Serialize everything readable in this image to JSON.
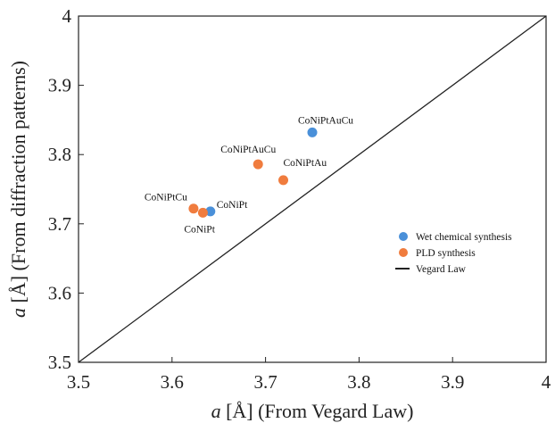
{
  "chart_data": {
    "type": "scatter",
    "title": "",
    "xlabel_symbol": "a",
    "xlabel_rest": " [Å] (From Vegard Law)",
    "ylabel_symbol": "a",
    "ylabel_rest": " [Å] (From diffraction patterns)",
    "xlim": [
      3.5,
      4.0
    ],
    "ylim": [
      3.5,
      4.0
    ],
    "xticks": [
      "3.5",
      "3.6",
      "3.7",
      "3.8",
      "3.9",
      "4"
    ],
    "yticks": [
      "3.5",
      "3.6",
      "3.7",
      "3.8",
      "3.9",
      "4"
    ],
    "grid": false,
    "legend_position": "lower-right",
    "series": [
      {
        "name": "Wet chemical synthesis",
        "color": "#4a90d9",
        "points": [
          {
            "x": 3.75,
            "y": 3.832,
            "label": "CoNiPtAuCu"
          },
          {
            "x": 3.641,
            "y": 3.718,
            "label": "CoNiPt"
          }
        ]
      },
      {
        "name": "PLD synthesis",
        "color": "#f07c3e",
        "points": [
          {
            "x": 3.692,
            "y": 3.786,
            "label": "CoNiPtAuCu"
          },
          {
            "x": 3.719,
            "y": 3.763,
            "label": "CoNiPtAu"
          },
          {
            "x": 3.623,
            "y": 3.722,
            "label": "CoNiPtCu"
          },
          {
            "x": 3.633,
            "y": 3.716,
            "label": "CoNiPt"
          }
        ]
      }
    ],
    "reference_line": {
      "name": "Vegard Law",
      "from": [
        3.5,
        3.5
      ],
      "to": [
        4.0,
        4.0
      ],
      "color": "#222222"
    }
  }
}
